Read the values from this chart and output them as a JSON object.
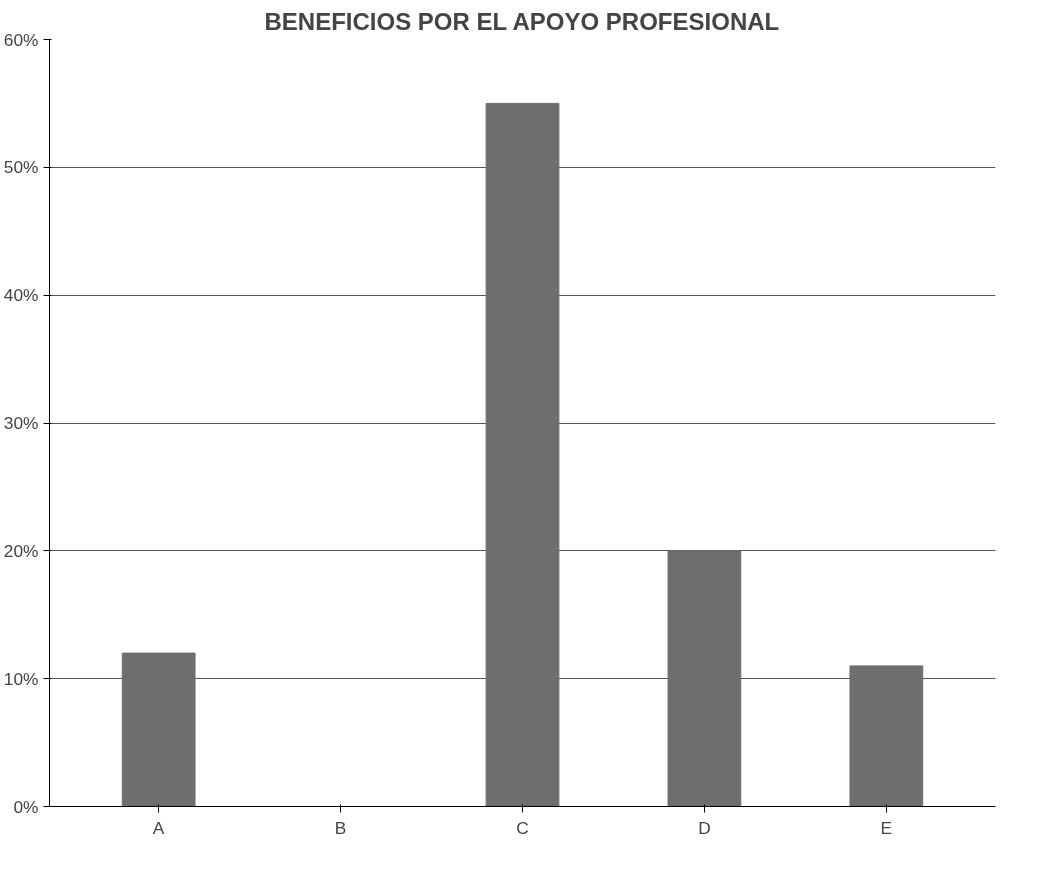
{
  "chart_data": {
    "type": "bar",
    "title": "BENEFICIOS POR EL APOYO PROFESIONAL",
    "categories": [
      "A",
      "B",
      "C",
      "D",
      "E"
    ],
    "values": [
      12,
      0,
      55,
      20,
      11
    ],
    "color": "#6e6e6e",
    "ylim": [
      0,
      60
    ],
    "yticks": [
      {
        "value": 0,
        "label": "0%"
      },
      {
        "value": 10,
        "label": "10%"
      },
      {
        "value": 20,
        "label": "20%"
      },
      {
        "value": 30,
        "label": "30%"
      },
      {
        "value": 40,
        "label": "40%"
      },
      {
        "value": 50,
        "label": "50%"
      },
      {
        "value": 60,
        "label": "60%"
      }
    ],
    "grid": "y"
  }
}
